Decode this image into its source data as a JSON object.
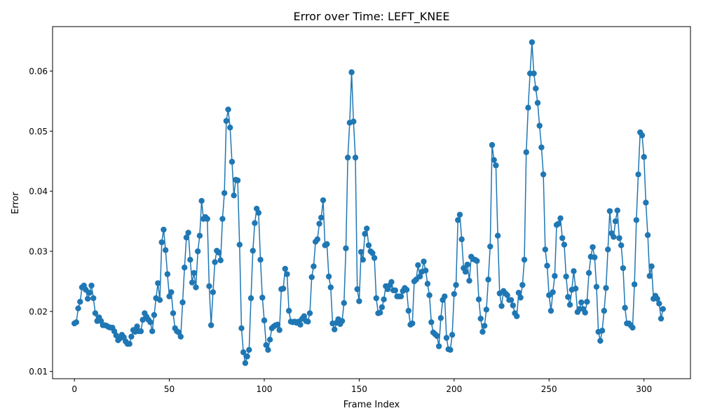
{
  "chart_data": {
    "type": "line",
    "title": "Error over Time: LEFT_KNEE",
    "xlabel": "Frame Index",
    "ylabel": "Error",
    "xlim": [
      -11.5,
      324.5
    ],
    "ylim": [
      0.0088,
      0.0674
    ],
    "xticks": [
      "0",
      "50",
      "100",
      "150",
      "200",
      "250",
      "300"
    ],
    "yticks": [
      "0.01",
      "0.02",
      "0.03",
      "0.04",
      "0.05",
      "0.06"
    ],
    "grid": false,
    "legend": "none",
    "series_color": "#1f77b4",
    "x_start": 0,
    "x_step": 1,
    "y": [
      0.018,
      0.0182,
      0.0205,
      0.0216,
      0.024,
      0.0243,
      0.0236,
      0.0221,
      0.0231,
      0.0243,
      0.0222,
      0.0197,
      0.0184,
      0.019,
      0.0184,
      0.0177,
      0.0177,
      0.0176,
      0.0174,
      0.0173,
      0.0173,
      0.0167,
      0.016,
      0.0152,
      0.0155,
      0.0161,
      0.0157,
      0.015,
      0.0146,
      0.0146,
      0.0158,
      0.0169,
      0.0166,
      0.0175,
      0.0167,
      0.0167,
      0.0186,
      0.0197,
      0.0191,
      0.0186,
      0.0182,
      0.0167,
      0.0194,
      0.0222,
      0.0247,
      0.0219,
      0.0315,
      0.0336,
      0.0302,
      0.0262,
      0.0225,
      0.0232,
      0.0197,
      0.0172,
      0.0167,
      0.0165,
      0.0158,
      0.0215,
      0.0273,
      0.0323,
      0.0331,
      0.0286,
      0.0248,
      0.0264,
      0.024,
      0.03,
      0.0326,
      0.0384,
      0.0354,
      0.0357,
      0.0354,
      0.0242,
      0.0177,
      0.0232,
      0.0282,
      0.0301,
      0.0298,
      0.0285,
      0.0354,
      0.0397,
      0.0517,
      0.0536,
      0.0506,
      0.0449,
      0.0393,
      0.0419,
      0.0418,
      0.0311,
      0.0172,
      0.0132,
      0.0114,
      0.0125,
      0.0136,
      0.0222,
      0.0301,
      0.0347,
      0.0371,
      0.0364,
      0.0286,
      0.0223,
      0.0185,
      0.0144,
      0.0136,
      0.0153,
      0.0172,
      0.0175,
      0.0177,
      0.0178,
      0.0169,
      0.0237,
      0.0238,
      0.0271,
      0.0262,
      0.0201,
      0.0183,
      0.0182,
      0.0183,
      0.0181,
      0.0183,
      0.0178,
      0.0188,
      0.0192,
      0.0184,
      0.0183,
      0.0197,
      0.0257,
      0.0275,
      0.0316,
      0.032,
      0.0346,
      0.0356,
      0.0385,
      0.031,
      0.0312,
      0.0258,
      0.024,
      0.018,
      0.017,
      0.0181,
      0.0187,
      0.0179,
      0.0184,
      0.0214,
      0.0305,
      0.0456,
      0.0514,
      0.0598,
      0.0516,
      0.0456,
      0.0237,
      0.0217,
      0.0299,
      0.0286,
      0.0329,
      0.0338,
      0.031,
      0.03,
      0.0297,
      0.0289,
      0.0222,
      0.0197,
      0.0198,
      0.0207,
      0.022,
      0.0242,
      0.0237,
      0.0243,
      0.0249,
      0.0235,
      0.0235,
      0.0225,
      0.0225,
      0.0225,
      0.0234,
      0.0239,
      0.0236,
      0.0201,
      0.0178,
      0.018,
      0.025,
      0.0253,
      0.0277,
      0.0258,
      0.0266,
      0.0283,
      0.0268,
      0.0246,
      0.0227,
      0.0182,
      0.0165,
      0.0162,
      0.0159,
      0.0142,
      0.0189,
      0.0219,
      0.0225,
      0.0156,
      0.0137,
      0.0136,
      0.0161,
      0.0229,
      0.0244,
      0.0352,
      0.0361,
      0.032,
      0.0272,
      0.0266,
      0.0278,
      0.0251,
      0.0291,
      0.0287,
      0.0286,
      0.0284,
      0.022,
      0.0188,
      0.0166,
      0.0176,
      0.0203,
      0.0253,
      0.0308,
      0.0477,
      0.0452,
      0.0443,
      0.0326,
      0.023,
      0.0209,
      0.0234,
      0.023,
      0.0227,
      0.0219,
      0.0219,
      0.021,
      0.0197,
      0.0192,
      0.0231,
      0.0223,
      0.0244,
      0.0286,
      0.0465,
      0.0539,
      0.0596,
      0.0648,
      0.0596,
      0.0571,
      0.0547,
      0.0509,
      0.0473,
      0.0428,
      0.0303,
      0.0276,
      0.0227,
      0.0201,
      0.0232,
      0.0259,
      0.0344,
      0.0346,
      0.0355,
      0.0322,
      0.0311,
      0.0258,
      0.0224,
      0.0211,
      0.0236,
      0.0267,
      0.0238,
      0.0199,
      0.0204,
      0.0215,
      0.0204,
      0.0198,
      0.0216,
      0.0264,
      0.0291,
      0.0307,
      0.029,
      0.0241,
      0.0166,
      0.0151,
      0.0168,
      0.0201,
      0.0239,
      0.0303,
      0.0367,
      0.033,
      0.0324,
      0.035,
      0.0368,
      0.0322,
      0.031,
      0.0272,
      0.0206,
      0.018,
      0.018,
      0.0177,
      0.0173,
      0.0245,
      0.0352,
      0.0428,
      0.0498,
      0.0493,
      0.0457,
      0.0381,
      0.0327,
      0.0259,
      0.0275,
      0.0221,
      0.0226,
      0.0221,
      0.0213,
      0.0188,
      0.0204
    ]
  }
}
